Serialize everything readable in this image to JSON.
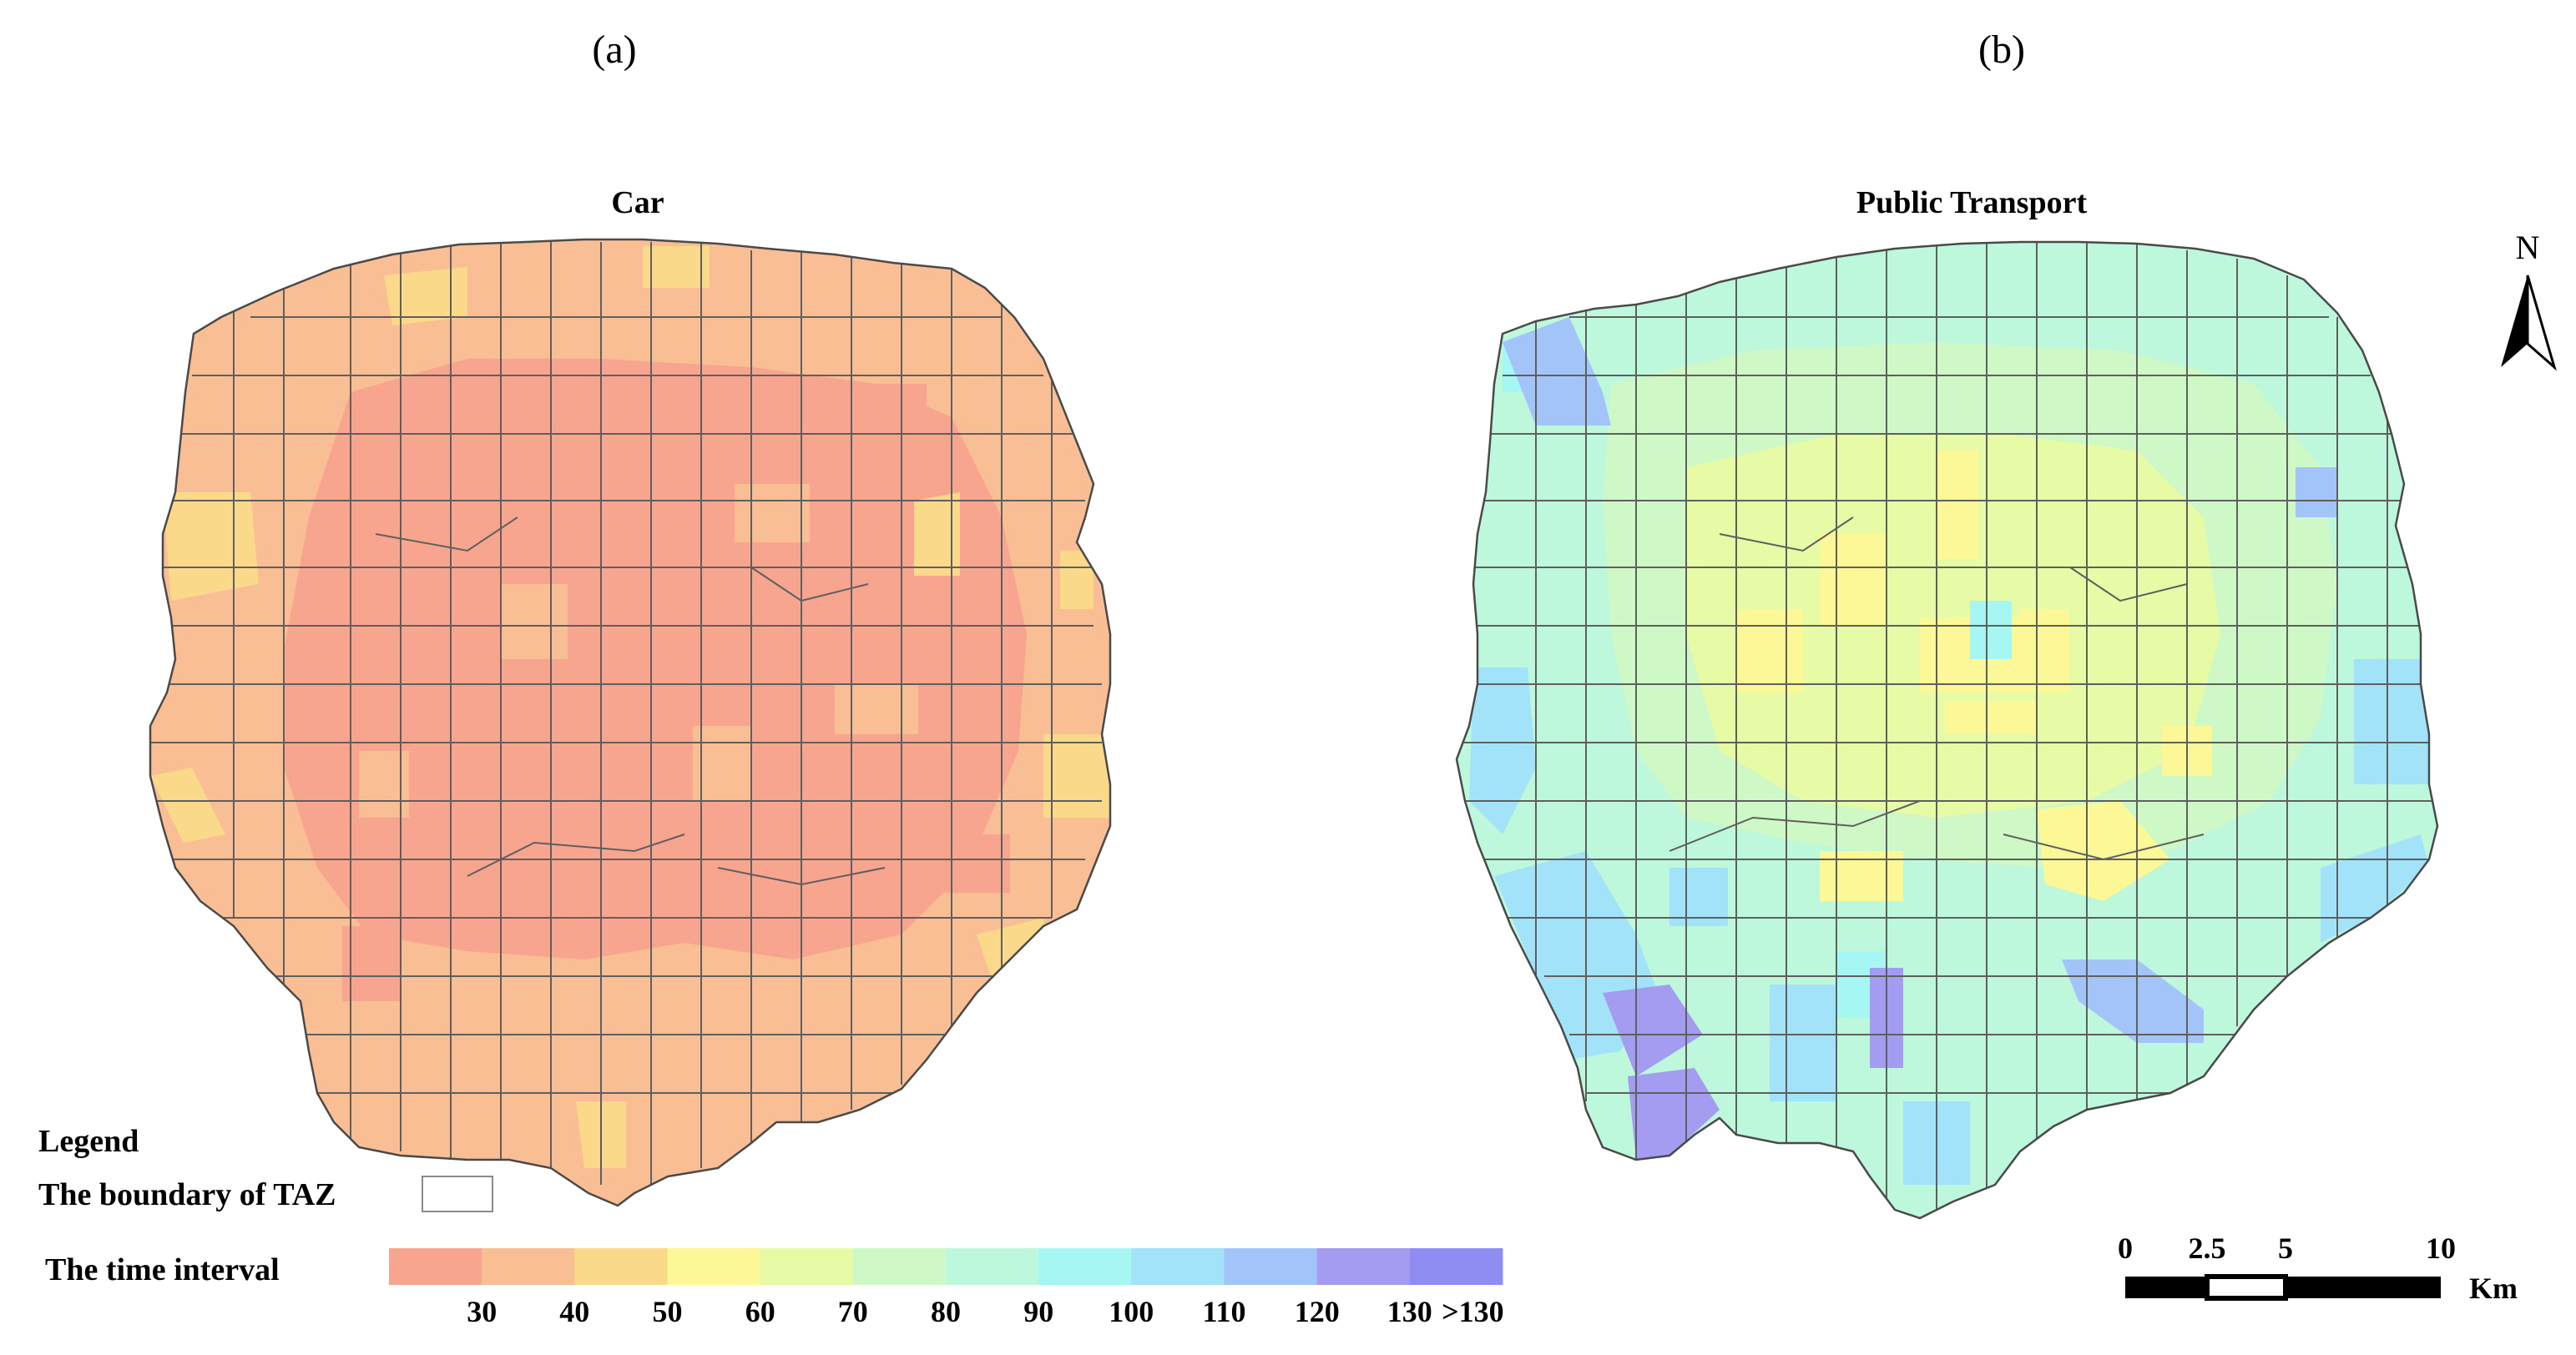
{
  "panels": {
    "a": {
      "label": "(a)",
      "title": "Car"
    },
    "b": {
      "label": "(b)",
      "title": "Public Transport"
    }
  },
  "legend": {
    "heading": "Legend",
    "boundary_label": "The boundary of TAZ",
    "interval_label": "The time interval",
    "ticks": [
      "30",
      "40",
      "50",
      "60",
      "70",
      "80",
      "90",
      "100",
      "110",
      "120",
      "130",
      ">130"
    ],
    "colors": [
      "#F7A58F",
      "#F9BE93",
      "#FBD98B",
      "#FCF797",
      "#E7FAA6",
      "#CFF8C7",
      "#BDF7DC",
      "#A6F7F4",
      "#A2E3FA",
      "#A3C4F8",
      "#A49CF1",
      "#8F8CF2"
    ]
  },
  "north_arrow": {
    "label": "N"
  },
  "scale_bar": {
    "labels": [
      "0",
      "2.5",
      "5",
      "10"
    ],
    "unit": "Km"
  },
  "colors": {
    "zone_border": "#5f5f5f",
    "outline": "#4a4a4a"
  }
}
